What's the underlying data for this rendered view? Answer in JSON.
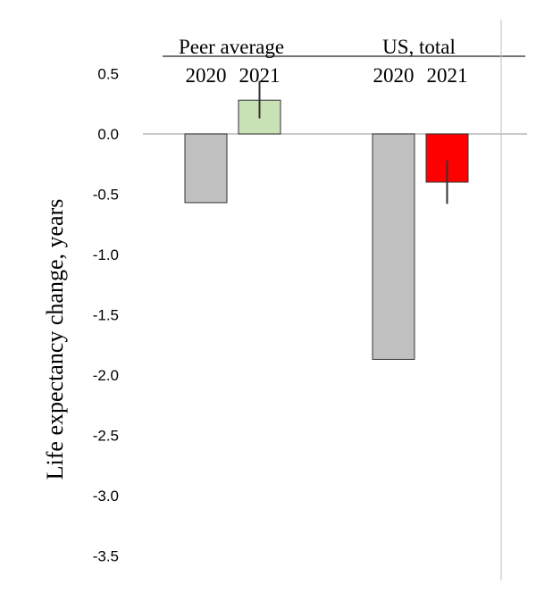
{
  "chart_data": {
    "type": "bar",
    "ylabel": "Life expectancy change, years",
    "ylim": [
      -3.6,
      0.6
    ],
    "yticks": [
      "0.5",
      "0.0",
      "-0.5",
      "-1.0",
      "-1.5",
      "-2.0",
      "-2.5",
      "-3.0",
      "-3.5"
    ],
    "ytick_values": [
      0.5,
      0.0,
      -0.5,
      -1.0,
      -1.5,
      -2.0,
      -2.5,
      -3.0,
      -3.5
    ],
    "groups": [
      {
        "name": "Peer average",
        "bars": [
          {
            "label": "2020",
            "value": -0.57,
            "color": "#c0c0c0"
          },
          {
            "label": "2021",
            "value": 0.28,
            "color": "#c8e2b5",
            "err_low": 0.13,
            "err_high": 0.44
          }
        ]
      },
      {
        "name": "US, total",
        "bars": [
          {
            "label": "2020",
            "value": -1.87,
            "color": "#c0c0c0"
          },
          {
            "label": "2021",
            "value": -0.4,
            "color": "#ff0000",
            "err_low": -0.58,
            "err_high": -0.22
          }
        ]
      }
    ]
  }
}
